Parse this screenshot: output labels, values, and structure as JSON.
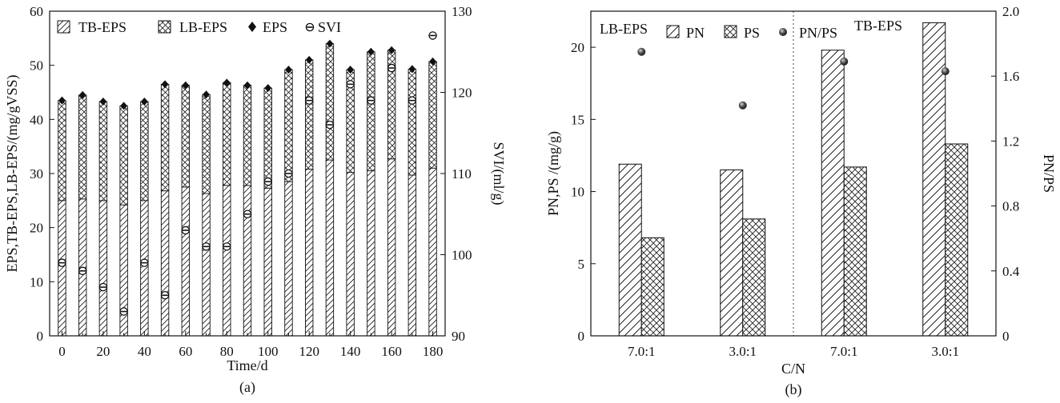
{
  "chart_data": [
    {
      "type": "bar",
      "panel_label": "(a)",
      "xlabel": "Time/d",
      "ylabel": "EPS,TB-EPS,LB-EPS/(mg/gVSS)",
      "y2label": "SVI/(ml/g)",
      "xlim": [
        -6,
        186
      ],
      "ylim": [
        0,
        60
      ],
      "y2lim": [
        90,
        130
      ],
      "xticks": [
        "0",
        "20",
        "40",
        "60",
        "80",
        "100",
        "120",
        "140",
        "160",
        "180"
      ],
      "yticks": [
        "0",
        "10",
        "20",
        "30",
        "40",
        "50",
        "60"
      ],
      "y2ticks": [
        "90",
        "100",
        "110",
        "120",
        "130"
      ],
      "x": [
        0,
        10,
        20,
        30,
        40,
        50,
        60,
        70,
        80,
        90,
        100,
        110,
        120,
        130,
        140,
        150,
        160,
        170,
        180
      ],
      "legend": [
        "TB-EPS",
        "LB-EPS",
        "EPS",
        "SVI"
      ],
      "series": [
        {
          "name": "TB-EPS",
          "kind": "stacked-bar",
          "values": [
            25,
            25.3,
            25,
            24.2,
            25,
            26.8,
            27.5,
            26.3,
            27.8,
            27.8,
            27.3,
            28.5,
            30.8,
            32.5,
            30.2,
            30.5,
            32.7,
            29.7,
            31
          ]
        },
        {
          "name": "LB-EPS",
          "kind": "stacked-bar",
          "values": [
            18.5,
            19.2,
            18.3,
            18.3,
            18.3,
            19.7,
            18.8,
            18.3,
            19,
            18.5,
            18.5,
            20.7,
            20.2,
            21.5,
            19,
            22,
            20.1,
            19.6,
            19.7
          ]
        },
        {
          "name": "EPS",
          "kind": "marker",
          "values": [
            43.5,
            44.5,
            43.3,
            42.5,
            43.3,
            46.5,
            46.3,
            44.6,
            46.8,
            46.3,
            45.8,
            49.2,
            51,
            54,
            49.2,
            52.5,
            52.8,
            49.3,
            50.7
          ]
        },
        {
          "name": "SVI",
          "kind": "marker",
          "axis": "right",
          "values": [
            99,
            98,
            96,
            93,
            99,
            95,
            103,
            101,
            101,
            105,
            109,
            110,
            119,
            116,
            121,
            119,
            123,
            119,
            127
          ]
        }
      ]
    },
    {
      "type": "bar",
      "panel_label": "(b)",
      "xlabel": "C/N",
      "ylabel": "PN,PS /(mg/g)",
      "y2label": "PN/PS",
      "categories": [
        "7.0:1",
        "3.0:1",
        "7.0:1",
        "3.0:1"
      ],
      "group_labels": [
        "LB-EPS",
        "TB-EPS"
      ],
      "ylim": [
        0,
        22.5
      ],
      "y2lim": [
        0,
        2.0
      ],
      "yticks": [
        "0",
        "5",
        "10",
        "15",
        "20"
      ],
      "y2ticks": [
        "0",
        "0.4",
        "0.8",
        "1.2",
        "1.6",
        "2.0"
      ],
      "legend": [
        "PN",
        "PS",
        "PN/PS"
      ],
      "series": [
        {
          "name": "PN",
          "values": [
            11.9,
            11.5,
            19.8,
            21.7
          ]
        },
        {
          "name": "PS",
          "values": [
            6.8,
            8.1,
            11.7,
            13.3
          ]
        },
        {
          "name": "PN/PS",
          "axis": "right",
          "values": [
            1.75,
            1.42,
            1.69,
            1.63
          ]
        }
      ]
    }
  ]
}
